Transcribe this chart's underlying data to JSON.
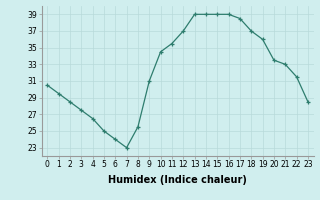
{
  "x": [
    0,
    1,
    2,
    3,
    4,
    5,
    6,
    7,
    8,
    9,
    10,
    11,
    12,
    13,
    14,
    15,
    16,
    17,
    18,
    19,
    20,
    21,
    22,
    23
  ],
  "y": [
    30.5,
    29.5,
    28.5,
    27.5,
    26.5,
    25.0,
    24.0,
    23.0,
    25.5,
    31.0,
    34.5,
    35.5,
    37.0,
    39.0,
    39.0,
    39.0,
    39.0,
    38.5,
    37.0,
    36.0,
    33.5,
    33.0,
    31.5,
    28.5
  ],
  "xlabel": "Humidex (Indice chaleur)",
  "yticks": [
    23,
    25,
    27,
    29,
    31,
    33,
    35,
    37,
    39
  ],
  "xticks": [
    0,
    1,
    2,
    3,
    4,
    5,
    6,
    7,
    8,
    9,
    10,
    11,
    12,
    13,
    14,
    15,
    16,
    17,
    18,
    19,
    20,
    21,
    22,
    23
  ],
  "ylim": [
    22.0,
    40.0
  ],
  "xlim": [
    -0.5,
    23.5
  ],
  "line_color": "#2e7d6e",
  "marker": "+",
  "bg_color": "#d0eeee",
  "grid_color": "#b8dada",
  "tick_fontsize": 5.5,
  "xlabel_fontsize": 7
}
